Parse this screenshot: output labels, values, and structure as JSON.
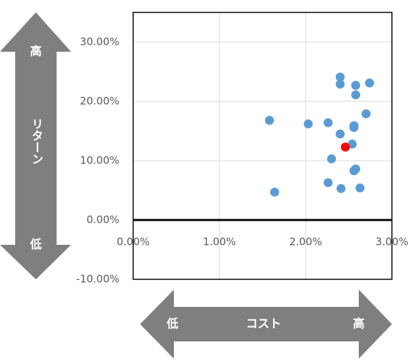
{
  "chart_data": {
    "type": "scatter",
    "xlim": [
      0,
      3
    ],
    "ylim": [
      -10,
      35
    ],
    "xticks": [
      {
        "value": 0,
        "label": "0.00%"
      },
      {
        "value": 1,
        "label": "1.00%"
      },
      {
        "value": 2,
        "label": "2.00%"
      },
      {
        "value": 3,
        "label": "3.00%"
      }
    ],
    "yticks": [
      {
        "value": -10,
        "label": "-10.00%"
      },
      {
        "value": 0,
        "label": "0.00%"
      },
      {
        "value": 10,
        "label": "10.00%"
      },
      {
        "value": 20,
        "label": "20.00%"
      },
      {
        "value": 30,
        "label": "30.00%"
      }
    ],
    "grid": true,
    "series": [
      {
        "color": "#5b9bd5",
        "x": [
          2.4,
          2.4,
          2.58,
          2.74,
          2.58,
          1.58,
          2.03,
          2.26,
          2.7,
          2.56,
          2.56,
          2.4,
          2.54,
          2.3,
          2.58,
          2.56,
          2.26,
          2.41,
          2.63,
          1.64
        ],
        "values": [
          24.1,
          22.9,
          22.7,
          23.1,
          21.1,
          16.8,
          16.2,
          16.4,
          17.9,
          15.9,
          15.6,
          14.5,
          12.8,
          10.3,
          8.6,
          8.3,
          6.3,
          5.3,
          5.4,
          4.7
        ]
      },
      {
        "color": "#ff0000",
        "x": [
          2.46
        ],
        "values": [
          12.3
        ]
      }
    ],
    "y_arrow": {
      "high": "高",
      "label": "リターン",
      "low": "低"
    },
    "x_arrow": {
      "low": "低",
      "label": "コスト",
      "high": "高"
    }
  }
}
